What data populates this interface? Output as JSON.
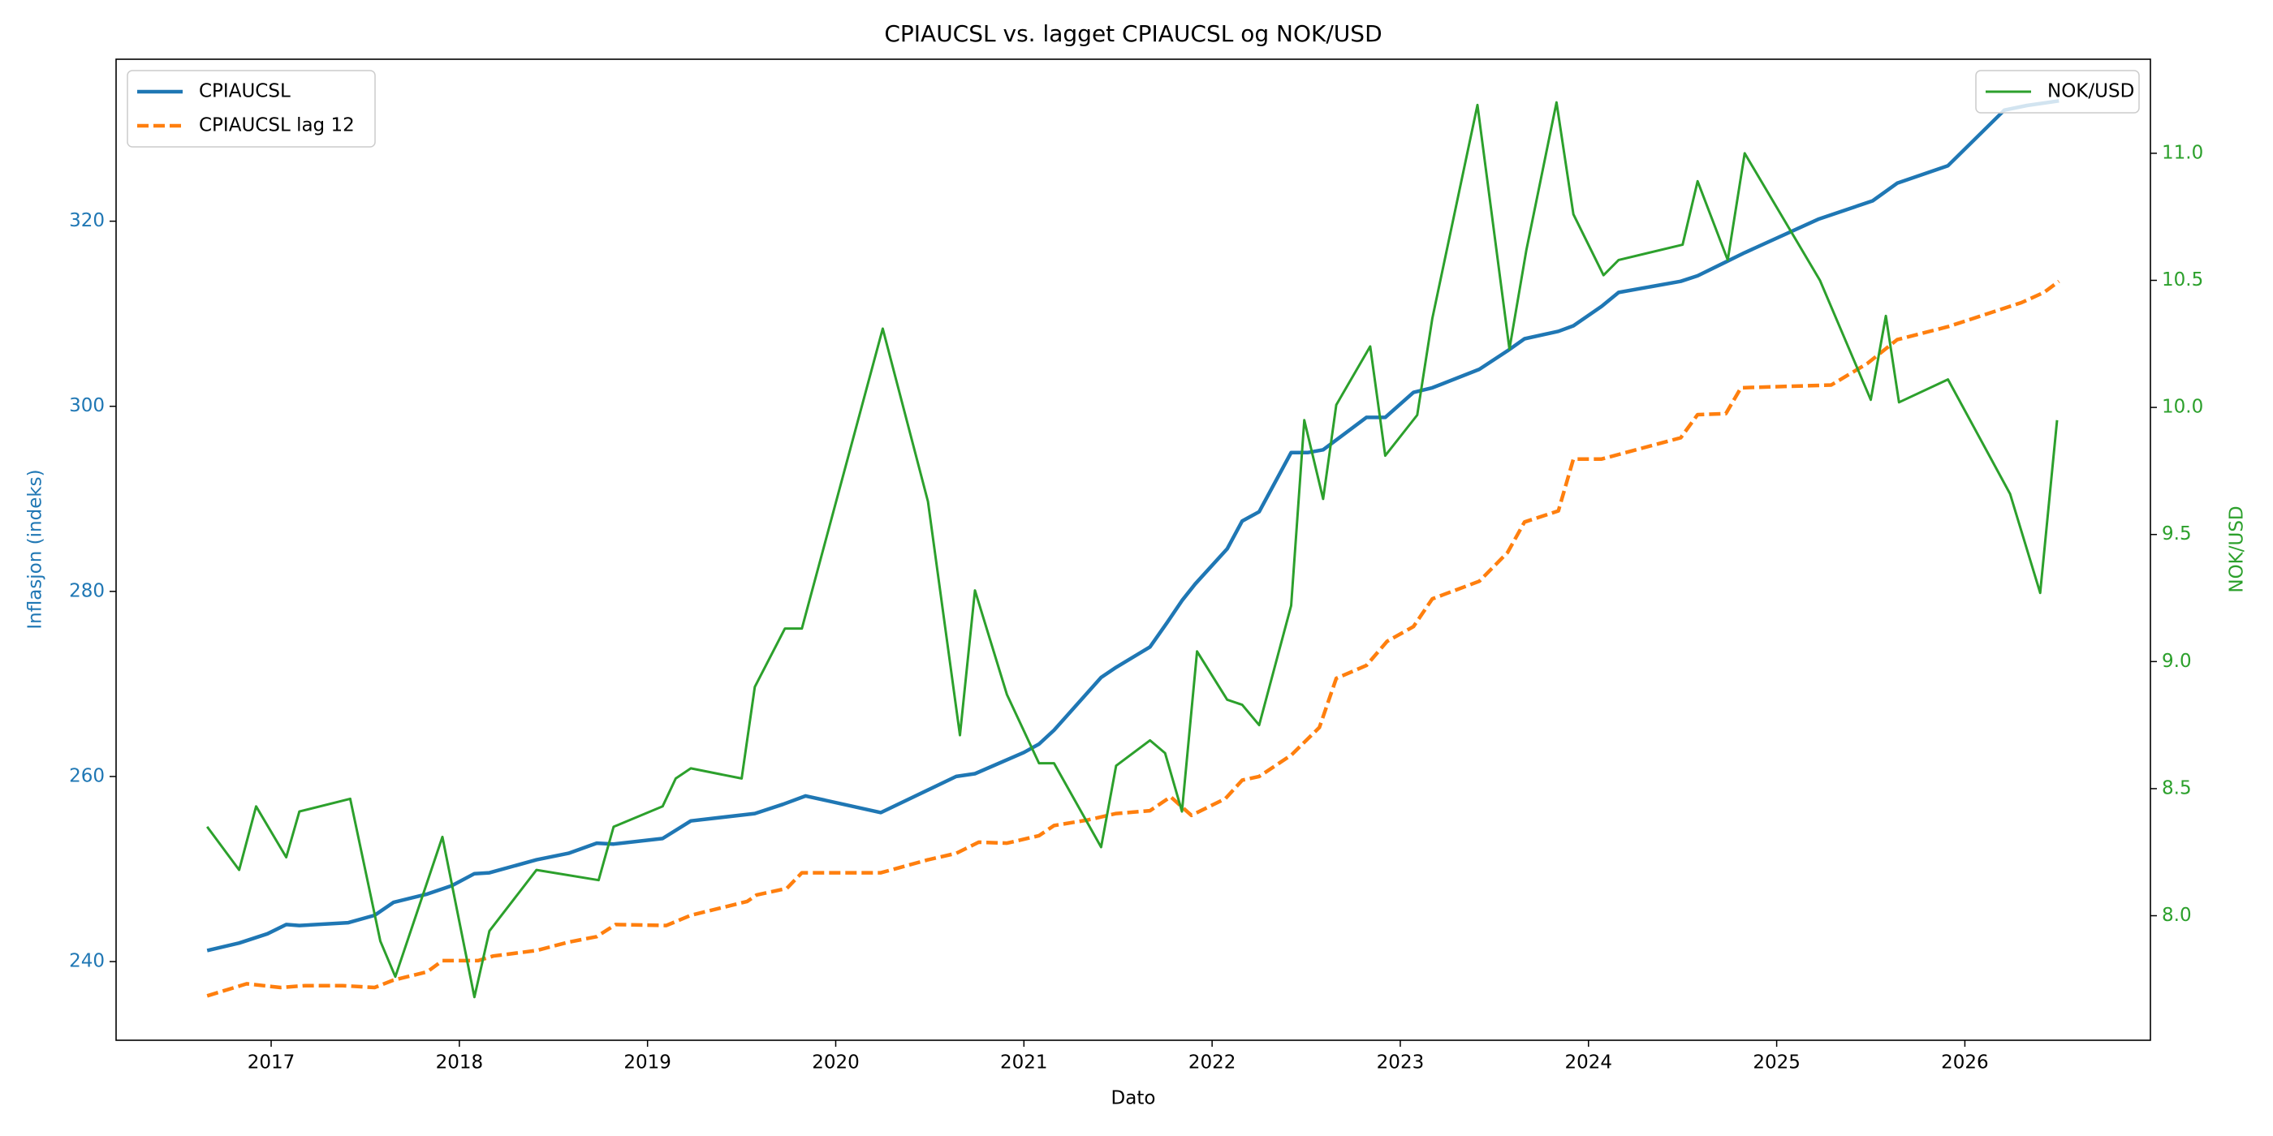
{
  "chart_data": {
    "type": "line",
    "title": "CPIAUCSL vs. lagget CPIAUCSL og NOK/USD",
    "xlabel": "Dato",
    "ylabel": "Inflasjon (indeks)",
    "y2label": "NOK/USD",
    "xlim": [
      2016.176,
      2026.986
    ],
    "xticks": [
      2017,
      2018,
      2019,
      2020,
      2021,
      2022,
      2023,
      2024,
      2025,
      2026
    ],
    "ylim": [
      231.5,
      337.5
    ],
    "yticks": [
      240,
      260,
      280,
      300,
      320
    ],
    "y2lim": [
      7.51,
      11.37
    ],
    "y2ticks": [
      {
        "value": 8,
        "label": "8.0"
      },
      8.5,
      {
        "value": 9,
        "label": "9.0"
      },
      9.5,
      {
        "value": 10,
        "label": "10.0"
      },
      10.5,
      {
        "value": 11,
        "label": "11.0"
      }
    ],
    "ycolor": "#1f77b4",
    "y2color": "#2ca02c",
    "legend": "upper left",
    "legend2": "upper right",
    "grid": false,
    "series": [
      {
        "name": "CPIAUCSL",
        "color": "#1f77b4",
        "dash": "solid",
        "x": [
          2016.66,
          2016.83,
          2016.98,
          2017.08,
          2017.15,
          2017.41,
          2017.55,
          2017.65,
          2017.83,
          2017.96,
          2018.08,
          2018.16,
          2018.41,
          2018.58,
          2018.73,
          2018.82,
          2019.08,
          2019.23,
          2019.57,
          2019.72,
          2019.84,
          2020.24,
          2020.64,
          2020.74,
          2021.0,
          2021.08,
          2021.16,
          2021.41,
          2021.49,
          2021.67,
          2021.76,
          2021.84,
          2021.91,
          2022.08,
          2022.16,
          2022.25,
          2022.42,
          2022.51,
          2022.59,
          2022.82,
          2022.92,
          2023.07,
          2023.17,
          2023.42,
          2023.57,
          2023.66,
          2023.84,
          2023.92,
          2024.07,
          2024.16,
          2024.49,
          2024.58,
          2024.73,
          2024.83,
          2025.22,
          2025.51,
          2025.64,
          2025.91,
          2026.21,
          2026.33,
          2026.5
        ],
        "values": [
          241.2,
          242,
          243,
          244,
          243.9,
          244.2,
          245,
          246.4,
          247.3,
          248.2,
          249.5,
          249.6,
          251,
          251.7,
          252.8,
          252.7,
          253.3,
          255.2,
          256,
          257,
          257.9,
          256.1,
          260,
          260.3,
          262.6,
          263.5,
          265,
          270.7,
          271.8,
          274,
          276.6,
          279,
          280.8,
          284.6,
          287.6,
          288.6,
          295,
          295,
          295.3,
          298.8,
          298.8,
          301.5,
          302,
          304,
          306,
          307.3,
          308.1,
          308.7,
          310.8,
          312.3,
          313.5,
          314.1,
          315.6,
          316.6,
          320.2,
          322.2,
          324.1,
          326,
          332,
          332.5,
          333
        ]
      },
      {
        "name": "CPIAUCSL lag 12",
        "color": "#ff7f0e",
        "dash": "dashed",
        "x": [
          2016.66,
          2016.87,
          2017.05,
          2017.18,
          2017.38,
          2017.55,
          2017.65,
          2017.83,
          2017.91,
          2018.1,
          2018.18,
          2018.41,
          2018.58,
          2018.73,
          2018.83,
          2019.1,
          2019.23,
          2019.53,
          2019.58,
          2019.74,
          2019.82,
          2020.24,
          2020.49,
          2020.64,
          2020.76,
          2020.91,
          2021.08,
          2021.16,
          2021.34,
          2021.49,
          2021.67,
          2021.78,
          2021.89,
          2022.07,
          2022.16,
          2022.25,
          2022.42,
          2022.57,
          2022.66,
          2022.82,
          2022.93,
          2023.07,
          2023.17,
          2023.42,
          2023.57,
          2023.66,
          2023.84,
          2023.92,
          2024.07,
          2024.49,
          2024.58,
          2024.73,
          2024.81,
          2025.29,
          2025.48,
          2025.64,
          2025.91,
          2026.3,
          2026.42,
          2026.5
        ],
        "values": [
          236.3,
          237.6,
          237.2,
          237.4,
          237.4,
          237.2,
          238,
          238.9,
          240.1,
          240.1,
          240.6,
          241.2,
          242.1,
          242.7,
          244,
          243.9,
          245,
          246.5,
          247.2,
          247.9,
          249.6,
          249.6,
          251,
          251.7,
          252.9,
          252.8,
          253.6,
          254.7,
          255.3,
          256,
          256.3,
          257.8,
          255.8,
          257.6,
          259.6,
          260,
          262.3,
          265.3,
          270.6,
          272,
          274.6,
          276.2,
          279.2,
          281.1,
          284.2,
          287.5,
          288.7,
          294.3,
          294.3,
          296.6,
          299.1,
          299.2,
          302,
          302.3,
          304.6,
          307.2,
          308.6,
          311.2,
          312.3,
          313.5
        ]
      },
      {
        "name": "NOK/USD",
        "color": "#2ca02c",
        "dash": "solid",
        "axis": "y2",
        "x": [
          2016.66,
          2016.83,
          2016.92,
          2017.08,
          2017.15,
          2017.42,
          2017.58,
          2017.66,
          2017.91,
          2018.08,
          2018.16,
          2018.41,
          2018.74,
          2018.82,
          2019.08,
          2019.15,
          2019.23,
          2019.5,
          2019.57,
          2019.73,
          2019.82,
          2020.25,
          2020.49,
          2020.66,
          2020.74,
          2020.91,
          2021.08,
          2021.16,
          2021.41,
          2021.49,
          2021.67,
          2021.75,
          2021.84,
          2021.92,
          2022.08,
          2022.16,
          2022.25,
          2022.42,
          2022.49,
          2022.59,
          2022.66,
          2022.84,
          2022.92,
          2023.09,
          2023.17,
          2023.41,
          2023.58,
          2023.67,
          2023.83,
          2023.92,
          2024.08,
          2024.16,
          2024.5,
          2024.58,
          2024.74,
          2024.83,
          2025.23,
          2025.5,
          2025.58,
          2025.65,
          2025.91,
          2026.24,
          2026.4,
          2026.49
        ],
        "values": [
          8.35,
          8.18,
          8.43,
          8.23,
          8.41,
          8.46,
          7.9,
          7.76,
          8.31,
          7.68,
          7.94,
          8.18,
          8.14,
          8.35,
          8.43,
          8.54,
          8.58,
          8.54,
          8.9,
          9.13,
          9.13,
          10.31,
          9.63,
          8.71,
          9.28,
          8.87,
          8.6,
          8.6,
          8.27,
          8.59,
          8.69,
          8.64,
          8.41,
          9.04,
          8.85,
          8.83,
          8.75,
          9.22,
          9.95,
          9.64,
          10.01,
          10.24,
          9.81,
          9.97,
          10.35,
          11.19,
          10.23,
          10.62,
          11.2,
          10.76,
          10.52,
          10.58,
          10.64,
          10.89,
          10.58,
          11.0,
          10.5,
          10.03,
          10.36,
          10.02,
          10.11,
          9.66,
          9.27,
          9.95
        ]
      }
    ]
  }
}
